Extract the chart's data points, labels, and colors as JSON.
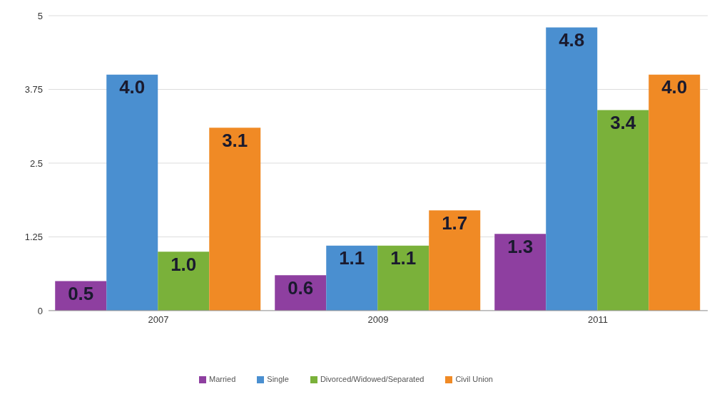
{
  "chart_data": {
    "type": "bar",
    "categories": [
      "2007",
      "2009",
      "2011"
    ],
    "series": [
      {
        "name": "Married",
        "color": "#8e3fa0",
        "values": [
          0.5,
          0.6,
          1.3
        ],
        "value_labels": [
          "0.5",
          "0.6",
          "1.3"
        ]
      },
      {
        "name": "Single",
        "color": "#4a8fd0",
        "values": [
          4,
          1.1,
          4.8
        ],
        "value_labels": [
          "4.0",
          "1.1",
          "4.8"
        ]
      },
      {
        "name": "Divorced/Widowed/Separated",
        "color": "#7ab13a",
        "values": [
          1,
          1.1,
          3.4
        ],
        "value_labels": [
          "1.0",
          "1.1",
          "3.4"
        ]
      },
      {
        "name": "Civil Union",
        "color": "#f08a25",
        "values": [
          3.1,
          1.7,
          4
        ],
        "value_labels": [
          "3.1",
          "1.7",
          "4.0"
        ]
      }
    ],
    "ylim": [
      0,
      5
    ],
    "yticks": [
      0,
      {
        "value": 1.25,
        "label": "1.25"
      },
      {
        "value": 2.5,
        "label": "2.5"
      },
      {
        "value": 3.75,
        "label": "3.75"
      },
      5
    ],
    "grid": "y",
    "legend": "bottom"
  }
}
